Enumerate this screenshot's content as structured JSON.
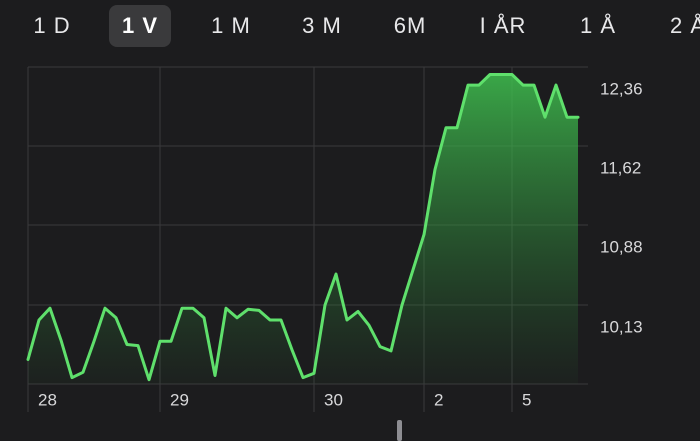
{
  "tabs": [
    {
      "label": "1 D",
      "selected": false
    },
    {
      "label": "1 V",
      "selected": true
    },
    {
      "label": "1 M",
      "selected": false
    },
    {
      "label": "3 M",
      "selected": false
    },
    {
      "label": "6M",
      "selected": false
    },
    {
      "label": "I ÅR",
      "selected": false
    },
    {
      "label": "1 Å",
      "selected": false
    },
    {
      "label": "2 Å",
      "selected": false
    }
  ],
  "chart_data": {
    "type": "area",
    "color": "#5fe06c",
    "categories": [
      "28",
      null,
      null,
      null,
      null,
      null,
      null,
      null,
      null,
      null,
      null,
      null,
      "29",
      null,
      null,
      null,
      null,
      null,
      null,
      null,
      null,
      null,
      null,
      null,
      null,
      null,
      "30",
      null,
      null,
      null,
      null,
      null,
      null,
      null,
      null,
      null,
      "2",
      null,
      null,
      null,
      null,
      null,
      null,
      null,
      "5",
      null,
      null,
      null,
      null,
      null,
      null
    ],
    "values": [
      9.62,
      9.99,
      10.1,
      9.8,
      9.45,
      9.5,
      9.79,
      10.1,
      10.01,
      9.76,
      9.75,
      9.43,
      9.79,
      9.79,
      10.1,
      10.1,
      10.01,
      9.47,
      10.1,
      10.01,
      10.09,
      10.08,
      9.99,
      9.99,
      9.71,
      9.45,
      9.49,
      10.13,
      10.42,
      9.99,
      10.07,
      9.94,
      9.74,
      9.7,
      10.13,
      10.46,
      10.79,
      11.4,
      11.79,
      11.79,
      12.19,
      12.19,
      12.29,
      12.29,
      12.29,
      12.19,
      12.19,
      11.89,
      12.19,
      11.89,
      11.89
    ],
    "ylim": [
      9.39,
      12.36
    ],
    "yticks": [
      {
        "value": 12.36,
        "label": "12,36"
      },
      {
        "value": 11.62,
        "label": "11,62"
      },
      {
        "value": 10.88,
        "label": "10,88"
      },
      {
        "value": 10.13,
        "label": "10,13"
      }
    ],
    "grid": true
  }
}
